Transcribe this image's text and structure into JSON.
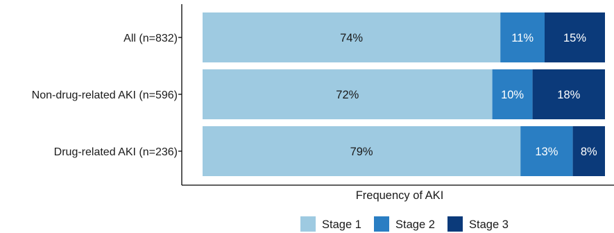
{
  "chart_data": {
    "type": "bar",
    "orientation": "horizontal",
    "stacked": true,
    "percent": true,
    "xlabel": "Frequency of AKI",
    "ylabel": "",
    "categories": [
      "All (n=832)",
      "Non-drug-related AKI (n=596)",
      "Drug-related AKI (n=236)"
    ],
    "series": [
      {
        "name": "Stage 1",
        "color": "#9ecae1",
        "values": [
          74,
          72,
          79
        ],
        "labels": [
          "74%",
          "72%",
          "79%"
        ]
      },
      {
        "name": "Stage 2",
        "color": "#2a7ec3",
        "values": [
          11,
          10,
          13
        ],
        "labels": [
          "11%",
          "10%",
          "13%"
        ]
      },
      {
        "name": "Stage 3",
        "color": "#0b3a7a",
        "values": [
          15,
          18,
          8
        ],
        "labels": [
          "15%",
          "18%",
          "8%"
        ]
      }
    ],
    "xlim": [
      0,
      100
    ],
    "grid": false,
    "legend_position": "bottom"
  }
}
